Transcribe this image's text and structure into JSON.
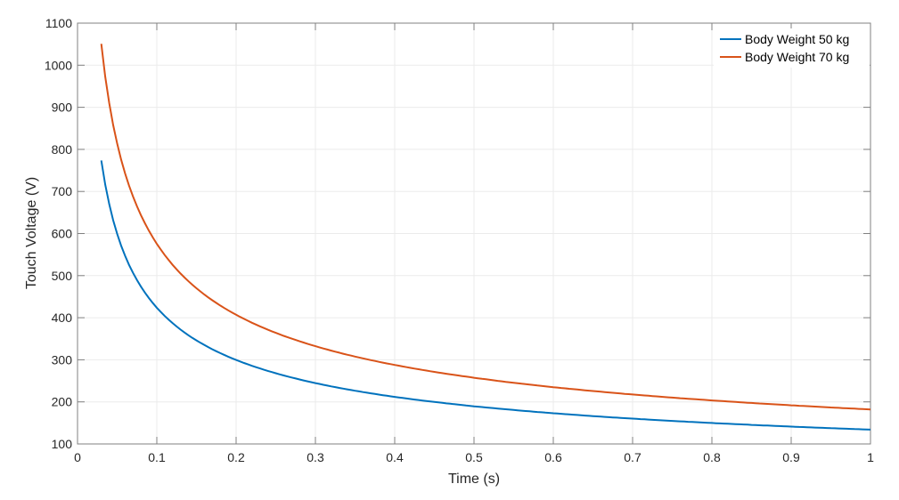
{
  "chart_data": {
    "type": "line",
    "title": "",
    "xlabel": "Time (s)",
    "ylabel": "Touch Voltage (V)",
    "xlim": [
      0,
      1
    ],
    "ylim": [
      100,
      1100
    ],
    "xticks": [
      "0",
      "0.1",
      "0.2",
      "0.3",
      "0.4",
      "0.5",
      "0.6",
      "0.7",
      "0.8",
      "0.9",
      "1"
    ],
    "yticks": [
      "100",
      "200",
      "300",
      "400",
      "500",
      "600",
      "700",
      "800",
      "900",
      "1000",
      "1100"
    ],
    "grid": true,
    "legend_position": "upper right",
    "x": [
      0.03,
      0.04,
      0.05,
      0.06,
      0.07,
      0.08,
      0.1,
      0.12,
      0.15,
      0.2,
      0.25,
      0.3,
      0.35,
      0.4,
      0.5,
      0.6,
      0.7,
      0.8,
      0.9,
      1.0
    ],
    "series": [
      {
        "name": "Body Weight 50 kg",
        "color": "#0072BD",
        "values": [
          773,
          670,
          599,
          547,
          506,
          474,
          424,
          387,
          346,
          300,
          268,
          245,
          226,
          212,
          189,
          173,
          160,
          150,
          141,
          134
        ]
      },
      {
        "name": "Body Weight 70 kg",
        "color": "#D95319",
        "values": [
          1047,
          907,
          811,
          741,
          686,
          641,
          574,
          524,
          469,
          406,
          363,
          331,
          307,
          287,
          257,
          234,
          217,
          203,
          191,
          182
        ]
      }
    ]
  }
}
